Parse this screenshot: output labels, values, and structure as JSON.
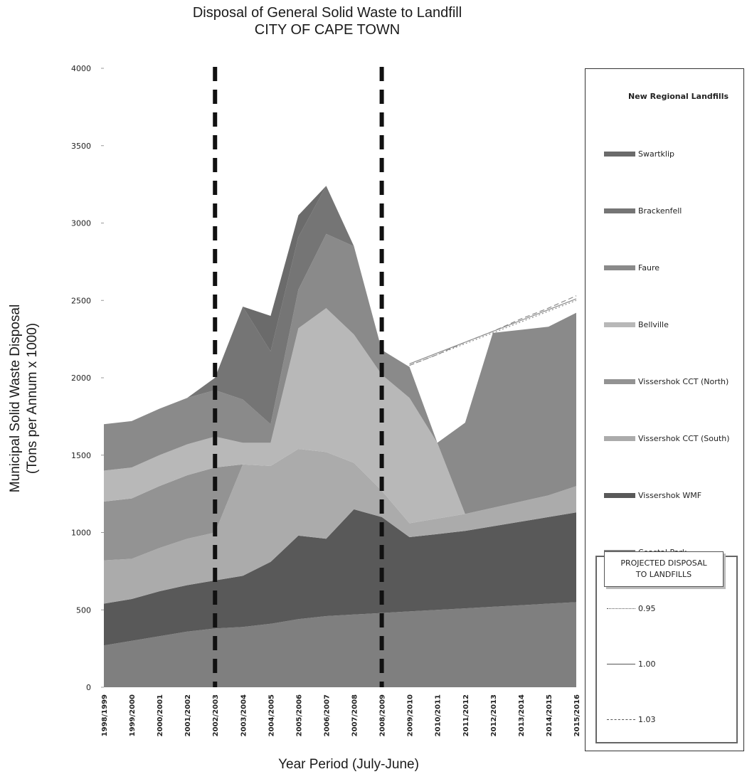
{
  "chart_data": {
    "type": "area",
    "stacked": true,
    "title": "Disposal of General Solid Waste to Landfill",
    "subtitle": "CITY OF CAPE TOWN",
    "xlabel": "Year Period (July-June)",
    "ylabel": "Municipal Solid Waste Disposal",
    "ylabel2": "(Tons per Annum x 1000)",
    "ylim": [
      0,
      4000
    ],
    "yticks": [
      0,
      500,
      1000,
      1500,
      2000,
      2500,
      3000,
      3500,
      4000
    ],
    "categories": [
      "1998/1999",
      "1999/2000",
      "2000/2001",
      "2001/2002",
      "2002/2003",
      "2003/2004",
      "2004/2005",
      "2005/2006",
      "2006/2007",
      "2007/2008",
      "2008/2009",
      "2009/2010",
      "2010/2011",
      "2011/2012",
      "2012/2013",
      "2013/2014",
      "2014/2015",
      "2015/2016"
    ],
    "legend_position": "right",
    "legend_heading": "New Regional Landfills",
    "series": [
      {
        "name": "Coastal Park",
        "color": "#7f7f7f",
        "values": [
          270,
          300,
          330,
          360,
          380,
          390,
          410,
          440,
          460,
          470,
          480,
          490,
          500,
          510,
          520,
          530,
          540,
          550
        ]
      },
      {
        "name": "Vissershok WMF",
        "color": "#595959",
        "values": [
          270,
          270,
          290,
          300,
          310,
          330,
          400,
          540,
          500,
          680,
          620,
          480,
          490,
          500,
          520,
          540,
          560,
          580
        ]
      },
      {
        "name": "Vissershok CCT (South)",
        "color": "#ababab",
        "values": [
          280,
          260,
          280,
          300,
          310,
          720,
          620,
          560,
          560,
          300,
          170,
          90,
          100,
          110,
          120,
          130,
          140,
          170
        ]
      },
      {
        "name": "Vissershok CCT (North)",
        "color": "#939393",
        "values": [
          380,
          390,
          400,
          410,
          420,
          0,
          0,
          0,
          0,
          0,
          0,
          0,
          0,
          0,
          0,
          0,
          0,
          0
        ]
      },
      {
        "name": "Bellville",
        "color": "#b8b8b8",
        "values": [
          200,
          200,
          200,
          200,
          200,
          140,
          150,
          780,
          930,
          830,
          750,
          810,
          490,
          0,
          0,
          0,
          0,
          0
        ]
      },
      {
        "name": "Faure",
        "color": "#8a8a8a",
        "values": [
          300,
          300,
          300,
          300,
          300,
          280,
          120,
          250,
          480,
          570,
          160,
          200,
          0,
          590,
          1130,
          1110,
          1090,
          1120
        ]
      },
      {
        "name": "Brackenfell",
        "color": "#757575",
        "values": [
          0,
          0,
          0,
          0,
          80,
          600,
          470,
          340,
          310,
          0,
          0,
          0,
          0,
          0,
          0,
          0,
          0,
          0
        ]
      },
      {
        "name": "Swartklip",
        "color": "#6b6b6b",
        "values": [
          0,
          0,
          0,
          0,
          0,
          0,
          230,
          140,
          0,
          0,
          0,
          0,
          0,
          0,
          0,
          0,
          0,
          0
        ]
      }
    ],
    "projections": [
      {
        "name": "0.95",
        "style": "dotted",
        "from_category": "2009/2010",
        "values": [
          2080,
          2150,
          2220,
          2290,
          2360,
          2430,
          2500
        ]
      },
      {
        "name": "1.00",
        "style": "solid",
        "from_category": "2009/2010",
        "values": [
          2090,
          2160,
          2230,
          2300,
          2370,
          2440,
          2510
        ]
      },
      {
        "name": "1.03",
        "style": "dashed",
        "from_category": "2009/2010",
        "values": [
          2080,
          2150,
          2230,
          2300,
          2380,
          2450,
          2530
        ]
      }
    ],
    "vertical_markers": [
      "2002/2003",
      "2008/2009"
    ],
    "projection_legend_heading_line1": "PROJECTED DISPOSAL",
    "projection_legend_heading_line2": "TO LANDFILLS",
    "grid": false
  }
}
